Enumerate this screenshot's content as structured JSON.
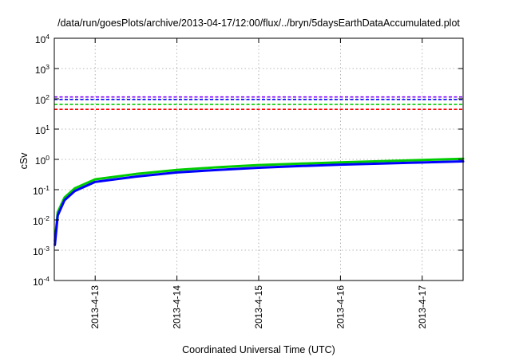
{
  "chart_data": {
    "type": "line",
    "title": "/data/run/goesPlots/archive/2013-04-17/12:00/flux/../bryn/5daysEarthDataAccumulated.plot",
    "xlabel": "Coordinated Universal Time (UTC)",
    "ylabel": "cSv",
    "y_scale": "log",
    "ylim": [
      0.0001,
      10000
    ],
    "y_ticks": [
      {
        "base": "10",
        "exp": "4"
      },
      {
        "base": "10",
        "exp": "3"
      },
      {
        "base": "10",
        "exp": "2"
      },
      {
        "base": "10",
        "exp": "1"
      },
      {
        "base": "10",
        "exp": "0"
      },
      {
        "base": "10",
        "exp": "-1"
      },
      {
        "base": "10",
        "exp": "-2"
      },
      {
        "base": "10",
        "exp": "-3"
      },
      {
        "base": "10",
        "exp": "-4"
      }
    ],
    "y_tick_values": [
      10000,
      1000,
      100,
      10,
      1,
      0.1,
      0.01,
      0.001,
      0.0001
    ],
    "xlim": [
      "2013-04-12T12:00",
      "2013-04-17T12:00"
    ],
    "x_ticks": [
      "2013-4-13",
      "2013-4-14",
      "2013-4-15",
      "2013-4-16",
      "2013-4-17"
    ],
    "x_tick_values": [
      "2013-04-13T00:00",
      "2013-04-14T00:00",
      "2013-04-15T00:00",
      "2013-04-16T00:00",
      "2013-04-17T00:00"
    ],
    "grid": true,
    "legend": "none",
    "series": [
      {
        "style": "dashed",
        "color": "#7f00ff",
        "x": [
          "2013-04-12T12:00",
          "2013-04-17T12:00"
        ],
        "y": [
          115,
          115
        ]
      },
      {
        "style": "dashed",
        "color": "#0000ff",
        "x": [
          "2013-04-12T12:00",
          "2013-04-17T12:00"
        ],
        "y": [
          95,
          95
        ]
      },
      {
        "style": "dashed",
        "color": "#00cc00",
        "x": [
          "2013-04-12T12:00",
          "2013-04-17T12:00"
        ],
        "y": [
          65,
          65
        ]
      },
      {
        "style": "dashed",
        "color": "#ff0000",
        "x": [
          "2013-04-12T12:00",
          "2013-04-17T12:00"
        ],
        "y": [
          45,
          45
        ]
      },
      {
        "style": "solid",
        "color": "#00cc00",
        "x": [
          "2013-04-12T12:10",
          "2013-04-12T13:00",
          "2013-04-12T15:00",
          "2013-04-12T18:00",
          "2013-04-13T00:00",
          "2013-04-13T12:00",
          "2013-04-14T00:00",
          "2013-04-14T12:00",
          "2013-04-15T00:00",
          "2013-04-15T12:00",
          "2013-04-16T00:00",
          "2013-04-16T12:00",
          "2013-04-17T00:00",
          "2013-04-17T12:00"
        ],
        "y": [
          0.002,
          0.018,
          0.055,
          0.11,
          0.22,
          0.33,
          0.45,
          0.55,
          0.65,
          0.72,
          0.8,
          0.87,
          0.95,
          1.05
        ]
      },
      {
        "style": "solid",
        "color": "#0000ff",
        "x": [
          "2013-04-12T12:10",
          "2013-04-12T13:00",
          "2013-04-12T15:00",
          "2013-04-12T18:00",
          "2013-04-13T00:00",
          "2013-04-13T12:00",
          "2013-04-14T00:00",
          "2013-04-14T12:00",
          "2013-04-15T00:00",
          "2013-04-15T12:00",
          "2013-04-16T00:00",
          "2013-04-16T12:00",
          "2013-04-17T00:00",
          "2013-04-17T12:00"
        ],
        "y": [
          0.0015,
          0.014,
          0.045,
          0.09,
          0.18,
          0.27,
          0.37,
          0.45,
          0.53,
          0.6,
          0.67,
          0.73,
          0.79,
          0.86
        ]
      }
    ]
  }
}
